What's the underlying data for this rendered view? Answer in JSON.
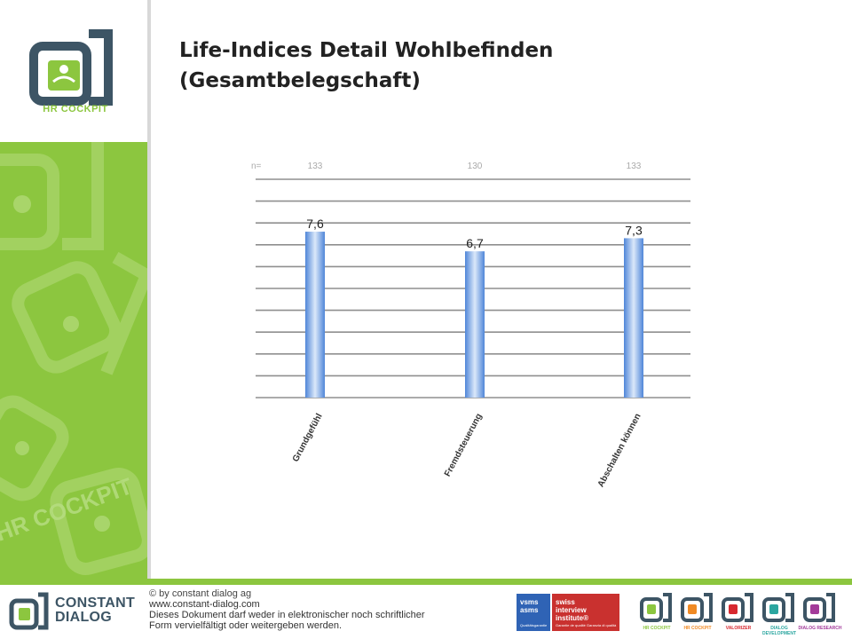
{
  "slide": {
    "title_line1": "Life-Indices Detail Wohlbefinden",
    "title_line2": "(Gesamtbelegschaft)"
  },
  "logo": {
    "text": "HR COCKPIT",
    "watermark": "HR COCKPIT"
  },
  "chart_data": {
    "type": "bar",
    "categories": [
      "Grundgefühl",
      "Fremdsteuerung",
      "Abschalten können"
    ],
    "values": [
      7.6,
      6.7,
      7.3
    ],
    "value_labels": [
      "7,6",
      "6,7",
      "7,3"
    ],
    "n_label": "n=",
    "n_values": [
      "133",
      "130",
      "133"
    ],
    "ylim": [
      0,
      10
    ],
    "gridlines": 11,
    "grid": true,
    "legend": "none",
    "title": "",
    "xlabel": "",
    "ylabel": "",
    "bar_color": "#6a9de0"
  },
  "footer": {
    "brand_line1": "CONSTANT",
    "brand_line2": "DIALOG",
    "copyright_line1": "© by constant dialog ag",
    "copyright_line2": "www.constant-dialog.com",
    "copyright_line3": "Dieses Dokument darf weder in elektronischer noch schriftlicher",
    "copyright_line4": "Form vervielfältigt oder weitergeben werden.",
    "badge_vsms_1": "vsms",
    "badge_vsms_2": "asms",
    "badge_vsms_sub": "Qualitätsgarantie",
    "badge_sii_1": "swiss",
    "badge_sii_2": "interview institute®",
    "badge_sii_sub": "Garantie de qualité    Garanzia di qualità",
    "products": [
      {
        "label": "HR COCKPIT",
        "color": "#8cc63f"
      },
      {
        "label": "HR COCKPIT",
        "color": "#f08a24"
      },
      {
        "label": "VALORIZER",
        "color": "#d7282f"
      },
      {
        "label": "DIALOG DEVELOPMENT",
        "color": "#2ba6a0"
      },
      {
        "label": "DIALOG RESEARCH",
        "color": "#a33b9a"
      }
    ]
  },
  "colors": {
    "accent": "#8cc63f",
    "brand_dark": "#3d5565"
  }
}
